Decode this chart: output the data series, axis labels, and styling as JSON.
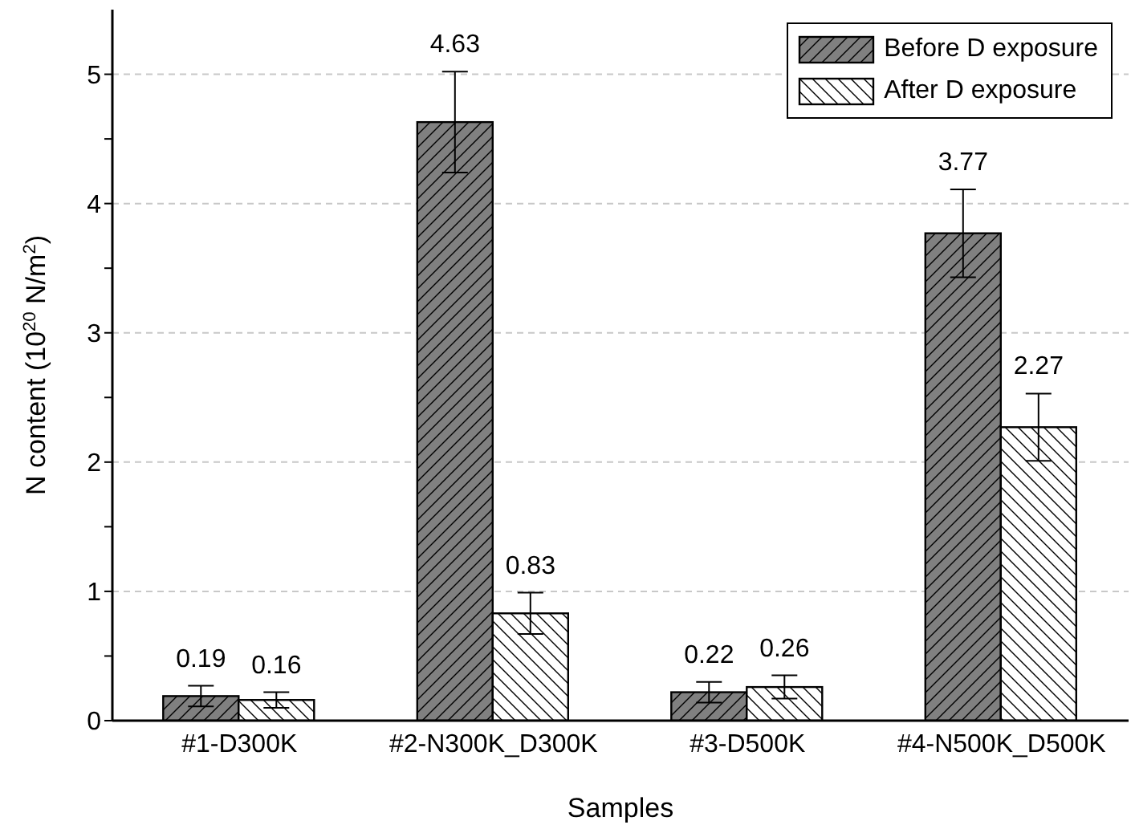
{
  "chart_data": {
    "type": "bar",
    "xlabel": "Samples",
    "ylabel": "N content (10$^{20}$ N/m$^{2}$)",
    "categories": [
      "#1-D300K",
      "#2-N300K_D300K",
      "#3-D500K",
      "#4-N500K_D500K"
    ],
    "series": [
      {
        "name": "Before D exposure",
        "color": "#808080",
        "values": [
          0.19,
          4.63,
          0.22,
          3.77
        ],
        "errors": [
          0.08,
          0.39,
          0.08,
          0.34
        ]
      },
      {
        "name": "After D exposure",
        "color": "#ffffff",
        "values": [
          0.16,
          0.83,
          0.26,
          2.27
        ],
        "errors": [
          0.06,
          0.16,
          0.09,
          0.26
        ]
      }
    ],
    "ylim": [
      0,
      5.5
    ],
    "yticks": [
      0,
      {
        "value": 0.5,
        "label": null
      },
      1,
      {
        "value": 1.5,
        "label": null
      },
      2,
      {
        "value": 2.5,
        "label": null
      },
      3,
      {
        "value": 3.5,
        "label": null
      },
      4,
      {
        "value": 4.5,
        "label": null
      },
      5
    ],
    "grid": "y",
    "legend": "top right",
    "data_labels": true
  }
}
